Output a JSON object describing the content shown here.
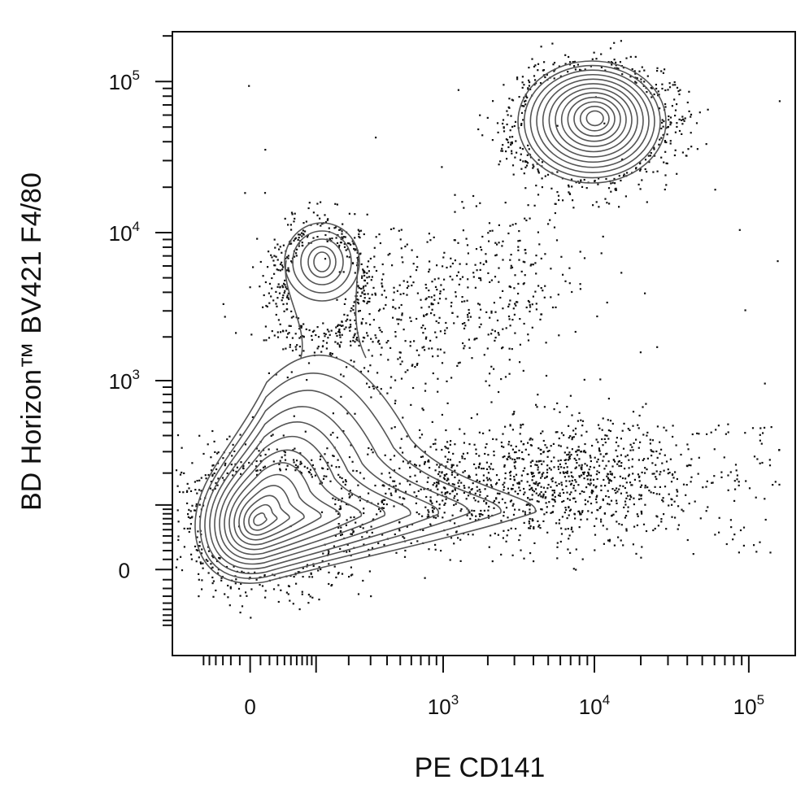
{
  "chart_data": {
    "type": "contour",
    "title": "",
    "xlabel": "PE CD141",
    "ylabel": "BD Horizon™ BV421 F4/80",
    "x_scale": "biexponential (log above ~10^2, linear around 0)",
    "y_scale": "biexponential (log above ~10^2, linear around 0)",
    "xlim": [
      -200,
      300000
    ],
    "ylim": [
      -200,
      300000
    ],
    "x_tick_labels": [
      {
        "value": 0,
        "base": "0",
        "exp": ""
      },
      {
        "value": 1000,
        "base": "10",
        "exp": "3"
      },
      {
        "value": 10000,
        "base": "10",
        "exp": "4"
      },
      {
        "value": 100000,
        "base": "10",
        "exp": "5"
      }
    ],
    "y_tick_labels": [
      {
        "value": 0,
        "base": "0",
        "exp": ""
      },
      {
        "value": 1000,
        "base": "10",
        "exp": "3"
      },
      {
        "value": 10000,
        "base": "10",
        "exp": "4"
      },
      {
        "value": 100000,
        "base": "10",
        "exp": "5"
      }
    ],
    "grid": false,
    "legend": "none",
    "populations": [
      {
        "label": "",
        "center_x": 0,
        "center_y": 50,
        "description": "double-negative, densest cluster",
        "relative_density": "highest"
      },
      {
        "label": "",
        "center_x": 60,
        "center_y": 6000,
        "description": "F4/80 high, CD141 low",
        "relative_density": "medium"
      },
      {
        "label": "",
        "center_x": 10000,
        "center_y": 60000,
        "description": "F4/80 high, CD141 high",
        "relative_density": "medium"
      }
    ],
    "colors": {
      "contour": "#555555",
      "dots": "#111111",
      "axis": "#111111"
    }
  }
}
